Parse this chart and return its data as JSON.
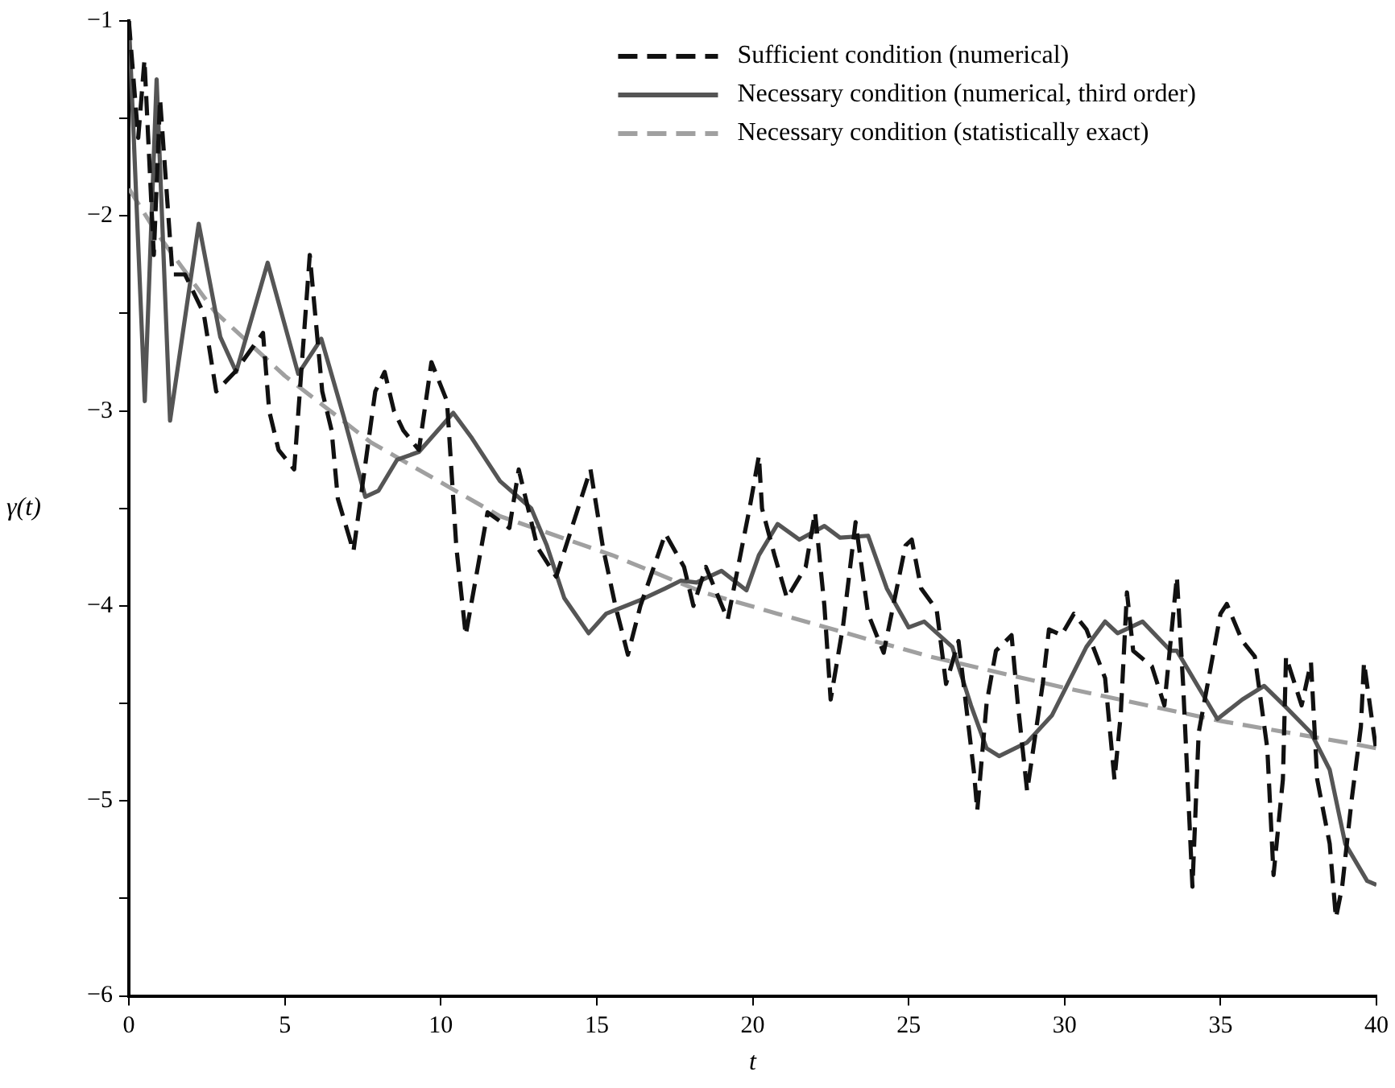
{
  "chart_data": {
    "type": "line",
    "xlabel": "t",
    "ylabel": "γ(t)",
    "xlim": [
      0,
      40
    ],
    "xticks": [
      0,
      5,
      10,
      15,
      20,
      25,
      30,
      35,
      40
    ],
    "ylim": [
      -6,
      -1
    ],
    "yticks": [
      -6,
      {
        "value": -5.5,
        "label": null
      },
      -5,
      {
        "value": -4.5,
        "label": null
      },
      -4,
      {
        "value": -3.5,
        "label": null
      },
      -3,
      {
        "value": -2.5,
        "label": null
      },
      -2,
      {
        "value": -1.5,
        "label": null
      },
      -1
    ],
    "grid": false,
    "legend": "top right",
    "marker": "none",
    "series": [
      {
        "name": "Sufficient condition (numerical)",
        "color": "#111111",
        "line_style": "dashed",
        "x": [
          0,
          0.3,
          0.5,
          0.8,
          1.0,
          1.4,
          1.8,
          2.4,
          2.8,
          3.4,
          4.3,
          4.5,
          4.8,
          5.3,
          5.8,
          6.2,
          6.5,
          6.7,
          7.2,
          7.9,
          8.2,
          8.5,
          8.8,
          9.3,
          9.7,
          10.2,
          10.5,
          10.8,
          11.5,
          12.2,
          12.5,
          13.1,
          13.7,
          14.8,
          15.2,
          15.6,
          16.0,
          16.4,
          17.2,
          17.8,
          18.1,
          18.5,
          19.2,
          19.9,
          20.2,
          20.3,
          20.7,
          21.1,
          21.7,
          22.0,
          22.3,
          22.5,
          22.9,
          23.3,
          23.7,
          24.2,
          24.9,
          25.1,
          25.4,
          25.9,
          26.2,
          26.6,
          27.1,
          27.2,
          27.5,
          27.8,
          28.3,
          28.5,
          28.8,
          29.3,
          29.5,
          29.9,
          30.3,
          30.7,
          31.3,
          31.6,
          31.8,
          32.0,
          32.2,
          32.8,
          33.2,
          33.6,
          33.8,
          34.1,
          34.3,
          35.0,
          35.2,
          35.7,
          36.1,
          36.5,
          36.7,
          37.0,
          37.1,
          37.6,
          37.9,
          38.1,
          38.5,
          38.7,
          38.9,
          39.2,
          39.5,
          39.6,
          40
        ],
        "values": [
          -1.0,
          -1.6,
          -1.2,
          -2.2,
          -1.4,
          -2.3,
          -2.3,
          -2.5,
          -2.9,
          -2.8,
          -2.6,
          -3.0,
          -3.2,
          -3.3,
          -2.2,
          -2.9,
          -3.1,
          -3.45,
          -3.72,
          -2.9,
          -2.8,
          -3.0,
          -3.1,
          -3.2,
          -2.75,
          -2.95,
          -3.7,
          -4.15,
          -3.52,
          -3.6,
          -3.3,
          -3.7,
          -3.85,
          -3.3,
          -3.7,
          -4.0,
          -4.25,
          -4.0,
          -3.63,
          -3.8,
          -4.0,
          -3.8,
          -4.07,
          -3.5,
          -3.23,
          -3.5,
          -3.74,
          -3.96,
          -3.8,
          -3.52,
          -4.0,
          -4.48,
          -4.1,
          -3.57,
          -4.04,
          -4.24,
          -3.69,
          -3.66,
          -3.91,
          -4.02,
          -4.4,
          -4.18,
          -4.86,
          -5.05,
          -4.5,
          -4.23,
          -4.15,
          -4.5,
          -4.95,
          -4.4,
          -4.12,
          -4.15,
          -4.04,
          -4.12,
          -4.37,
          -4.89,
          -4.56,
          -3.93,
          -4.23,
          -4.31,
          -4.51,
          -3.85,
          -4.4,
          -5.44,
          -4.65,
          -4.04,
          -3.99,
          -4.18,
          -4.26,
          -4.73,
          -5.38,
          -4.89,
          -4.26,
          -4.51,
          -4.29,
          -4.89,
          -5.22,
          -5.6,
          -5.44,
          -5.0,
          -4.62,
          -4.29,
          -4.75
        ]
      },
      {
        "name": "Necessary condition (numerical, third order)",
        "color": "#555555",
        "line_style": "solid",
        "x": [
          0,
          0.51,
          0.89,
          1.32,
          2.24,
          2.93,
          3.44,
          4.45,
          5.43,
          6.17,
          6.89,
          7.58,
          8.0,
          8.6,
          9.3,
          10.4,
          11.0,
          11.9,
          12.9,
          13.4,
          13.96,
          14.74,
          15.3,
          16.4,
          17.2,
          17.7,
          18.2,
          19.0,
          19.8,
          20.2,
          20.8,
          21.5,
          22.3,
          22.8,
          23.7,
          24.3,
          25.0,
          25.5,
          26.4,
          27.0,
          27.5,
          27.9,
          28.8,
          29.6,
          30.7,
          31.3,
          31.7,
          32.5,
          33.4,
          33.6,
          34.9,
          35.7,
          36.4,
          37.1,
          37.9,
          38.5,
          39.0,
          39.7,
          40
        ],
        "values": [
          -1.0,
          -2.95,
          -1.3,
          -3.05,
          -2.04,
          -2.62,
          -2.8,
          -2.24,
          -2.81,
          -2.63,
          -3.03,
          -3.44,
          -3.41,
          -3.25,
          -3.21,
          -3.01,
          -3.14,
          -3.36,
          -3.5,
          -3.69,
          -3.96,
          -4.14,
          -4.04,
          -3.97,
          -3.91,
          -3.87,
          -3.88,
          -3.82,
          -3.92,
          -3.74,
          -3.58,
          -3.66,
          -3.59,
          -3.65,
          -3.64,
          -3.91,
          -4.11,
          -4.08,
          -4.21,
          -4.51,
          -4.73,
          -4.77,
          -4.7,
          -4.56,
          -4.21,
          -4.08,
          -4.14,
          -4.08,
          -4.23,
          -4.23,
          -4.58,
          -4.48,
          -4.41,
          -4.52,
          -4.65,
          -4.84,
          -5.22,
          -5.41,
          -5.43
        ]
      },
      {
        "name": "Necessary condition (statistically exact)",
        "color": "#a0a0a0",
        "line_style": "dashed",
        "x": [
          0,
          0.86,
          2.75,
          5.0,
          7.75,
          11.9,
          15.5,
          18.4,
          20.8,
          23.9,
          25.7,
          30,
          35,
          39,
          40
        ],
        "values": [
          -1.86,
          -2.08,
          -2.49,
          -2.82,
          -3.16,
          -3.54,
          -3.74,
          -3.93,
          -4.04,
          -4.18,
          -4.26,
          -4.42,
          -4.59,
          -4.7,
          -4.73
        ]
      }
    ]
  }
}
